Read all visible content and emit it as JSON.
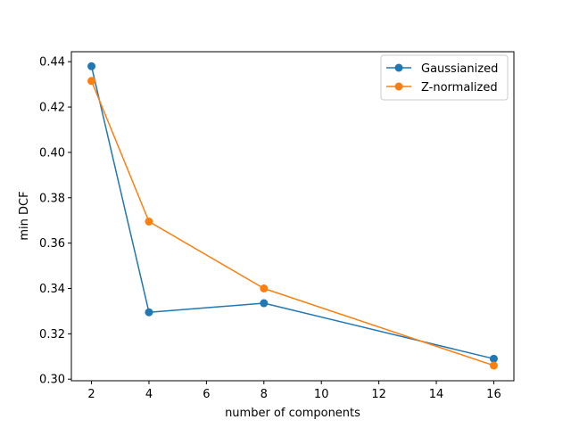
{
  "chart_data": {
    "type": "line",
    "xlabel": "number of components",
    "ylabel": "min DCF",
    "xlim": [
      1.3,
      16.7
    ],
    "ylim": [
      0.2993,
      0.4444
    ],
    "x_ticks": [
      2,
      4,
      6,
      8,
      10,
      12,
      14,
      16
    ],
    "y_ticks": [
      0.3,
      0.32,
      0.34,
      0.36,
      0.38,
      0.4,
      0.42,
      0.44
    ],
    "y_tick_labels": [
      "0.30",
      "0.32",
      "0.34",
      "0.36",
      "0.38",
      "0.40",
      "0.42",
      "0.44"
    ],
    "grid": false,
    "legend_position": "top-right",
    "series": [
      {
        "name": "Gaussianized",
        "color": "#1f77b4",
        "x": [
          2,
          4,
          8,
          16
        ],
        "y": [
          0.438,
          0.3295,
          0.3335,
          0.309
        ]
      },
      {
        "name": "Z-normalized",
        "color": "#ff7f0e",
        "x": [
          2,
          4,
          8,
          16
        ],
        "y": [
          0.4315,
          0.3695,
          0.34,
          0.306
        ]
      }
    ]
  }
}
